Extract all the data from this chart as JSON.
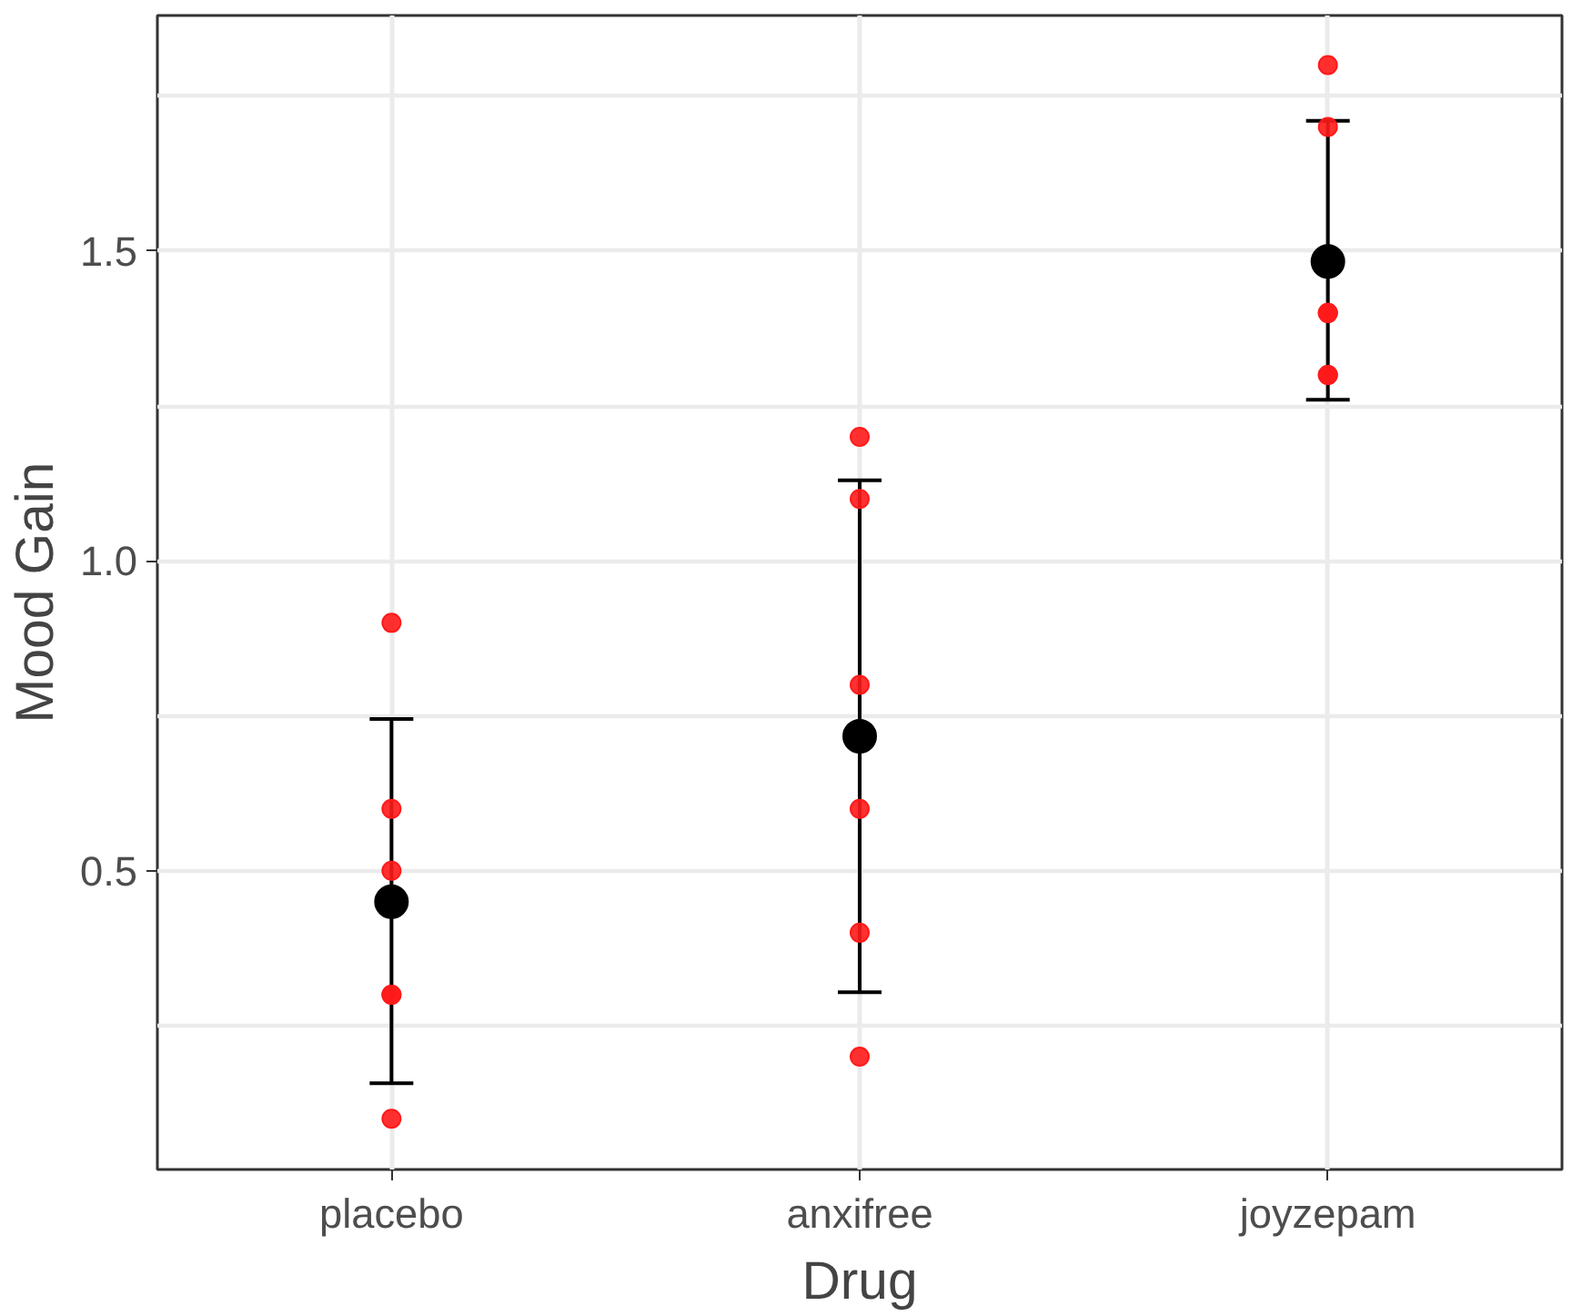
{
  "chart_data": {
    "type": "scatter",
    "xlabel": "Drug",
    "ylabel": "Mood Gain",
    "categories": [
      "placebo",
      "anxifree",
      "joyzepam"
    ],
    "ylim": [
      0.018,
      1.88
    ],
    "yticks": [
      {
        "value": 0.25,
        "label": null
      },
      0.5,
      {
        "value": 0.75,
        "label": null
      },
      {
        "value": 1.0,
        "label": "1.0"
      },
      {
        "value": 1.25,
        "label": null
      },
      1.5,
      {
        "value": 1.75,
        "label": null
      }
    ],
    "grid": true,
    "series": [
      {
        "color": "#ff1a1a",
        "marker": "circle",
        "x": [
          "placebo",
          "placebo",
          "placebo",
          "placebo",
          "placebo",
          "placebo",
          "anxifree",
          "anxifree",
          "anxifree",
          "anxifree",
          "anxifree",
          "anxifree",
          "joyzepam",
          "joyzepam",
          "joyzepam",
          "joyzepam",
          "joyzepam",
          "joyzepam"
        ],
        "values": [
          0.5,
          0.3,
          0.1,
          0.6,
          0.9,
          0.3,
          0.6,
          0.4,
          0.2,
          1.2,
          1.1,
          0.8,
          1.4,
          1.7,
          1.3,
          1.8,
          1.3,
          1.4
        ]
      },
      {
        "color": "#000000",
        "marker": "circle",
        "x": [
          "placebo",
          "anxifree",
          "joyzepam"
        ],
        "values": [
          0.45,
          0.717,
          1.483
        ],
        "errors": [
          [
            0.157,
            0.745
          ],
          [
            0.304,
            1.13
          ],
          [
            1.26,
            1.71
          ]
        ]
      }
    ]
  }
}
